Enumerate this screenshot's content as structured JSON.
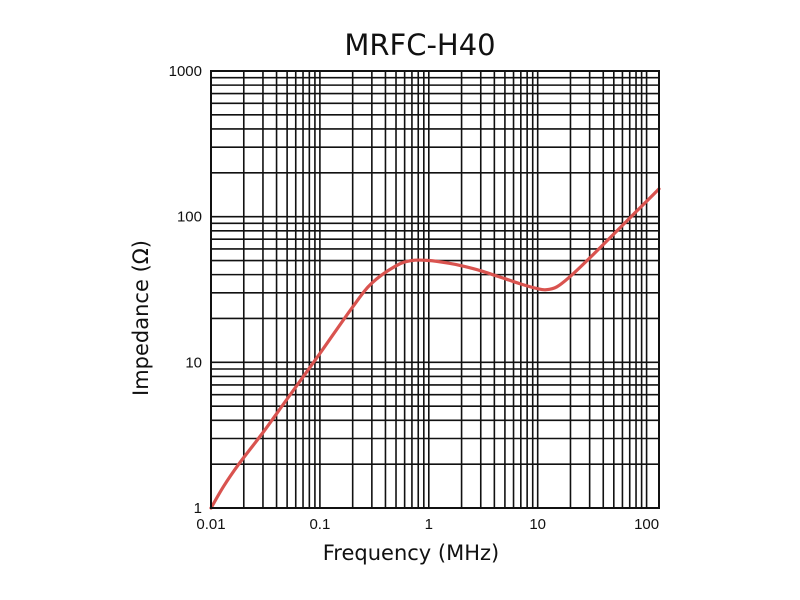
{
  "chart_data": {
    "type": "line",
    "title": "MRFC-H40",
    "xlabel": "Frequency (MHz)",
    "ylabel": "Impedance (Ω)",
    "x_scale": "log",
    "y_scale": "log",
    "xlim": [
      0.01,
      130
    ],
    "ylim": [
      1,
      1000
    ],
    "x_ticks": [
      0.01,
      0.1,
      1,
      10,
      100
    ],
    "x_tick_labels": [
      "0.01",
      "0.1",
      "1",
      "10",
      "100"
    ],
    "y_ticks": [
      1,
      10,
      100,
      1000
    ],
    "y_tick_labels": [
      "1",
      "10",
      "100",
      "1000"
    ],
    "grid": true,
    "legend": "none",
    "series": [
      {
        "color": "#d9534f",
        "x": [
          0.01,
          0.013,
          0.018,
          0.03,
          0.05,
          0.1,
          0.2,
          0.3,
          0.5,
          0.7,
          1,
          1.5,
          2,
          3,
          5,
          7,
          10,
          12,
          15,
          20,
          30,
          50,
          80,
          130
        ],
        "y": [
          1.0,
          1.4,
          2.0,
          3.3,
          5.6,
          11.5,
          24,
          35,
          46,
          50,
          50,
          48,
          46,
          42.5,
          37.5,
          34.5,
          32,
          31.5,
          33,
          39,
          52,
          76,
          108,
          155
        ]
      }
    ]
  }
}
